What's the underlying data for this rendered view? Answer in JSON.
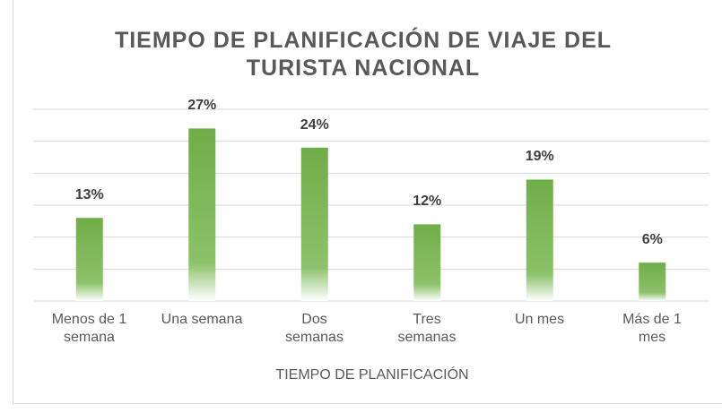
{
  "chart_data": {
    "type": "bar",
    "title": "TIEMPO DE PLANIFICACIÓN DE VIAJE DEL TURISTA NACIONAL",
    "x_label": "TIEMPO DE PLANIFICACIÓN",
    "categories": [
      "Menos de 1\nsemana",
      "Una semana",
      "Dos\nsemanas",
      "Tres\nsemanas",
      "Un mes",
      "Más de 1\nmes"
    ],
    "values": [
      13,
      27,
      24,
      12,
      19,
      6
    ],
    "value_labels": [
      "13%",
      "27%",
      "24%",
      "12%",
      "19%",
      "6%"
    ],
    "color": "#70ad47",
    "ylim": [
      0,
      30
    ],
    "yticks": [
      0,
      5,
      10,
      15,
      20,
      25,
      30
    ],
    "grid": true
  }
}
